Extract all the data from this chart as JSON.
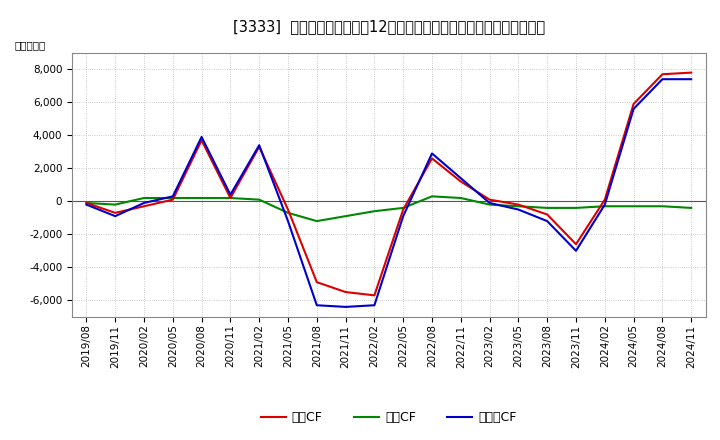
{
  "title": "[3333]  キャッシュフローの12か月移動合計の対前年同期増減額の推移",
  "ylabel": "（百万円）",
  "background_color": "#ffffff",
  "plot_bg_color": "#ffffff",
  "grid_color": "#bbbbbb",
  "ylim": [
    -7000,
    9000
  ],
  "yticks": [
    -6000,
    -4000,
    -2000,
    0,
    2000,
    4000,
    6000,
    8000
  ],
  "x_labels": [
    "2019/08",
    "2019/11",
    "2020/02",
    "2020/05",
    "2020/08",
    "2020/11",
    "2021/02",
    "2021/05",
    "2021/08",
    "2021/11",
    "2022/02",
    "2022/05",
    "2022/08",
    "2022/11",
    "2023/02",
    "2023/05",
    "2023/08",
    "2023/11",
    "2024/02",
    "2024/05",
    "2024/08",
    "2024/11"
  ],
  "eigyo_cf": [
    -100,
    -700,
    -300,
    100,
    3700,
    200,
    3300,
    -500,
    -4900,
    -5500,
    -5700,
    -500,
    2600,
    1200,
    100,
    -200,
    -800,
    -2600,
    100,
    5900,
    7700,
    7800
  ],
  "toshi_cf": [
    -100,
    -200,
    200,
    200,
    200,
    200,
    100,
    -700,
    -1200,
    -900,
    -600,
    -400,
    300,
    200,
    -200,
    -300,
    -400,
    -400,
    -300,
    -300,
    -300,
    -400
  ],
  "free_cf": [
    -200,
    -900,
    -100,
    300,
    3900,
    400,
    3400,
    -1200,
    -6300,
    -6400,
    -6300,
    -900,
    2900,
    1400,
    -100,
    -500,
    -1200,
    -3000,
    -200,
    5600,
    7400,
    7400
  ],
  "eigyo_color": "#dd0000",
  "toshi_color": "#008800",
  "free_color": "#0000cc",
  "line_width": 1.5,
  "legend_labels": [
    "営業CF",
    "投資CF",
    "フリーCF"
  ],
  "title_fontsize": 10.5,
  "axis_fontsize": 7.5,
  "ylabel_fontsize": 7.5,
  "legend_fontsize": 9
}
